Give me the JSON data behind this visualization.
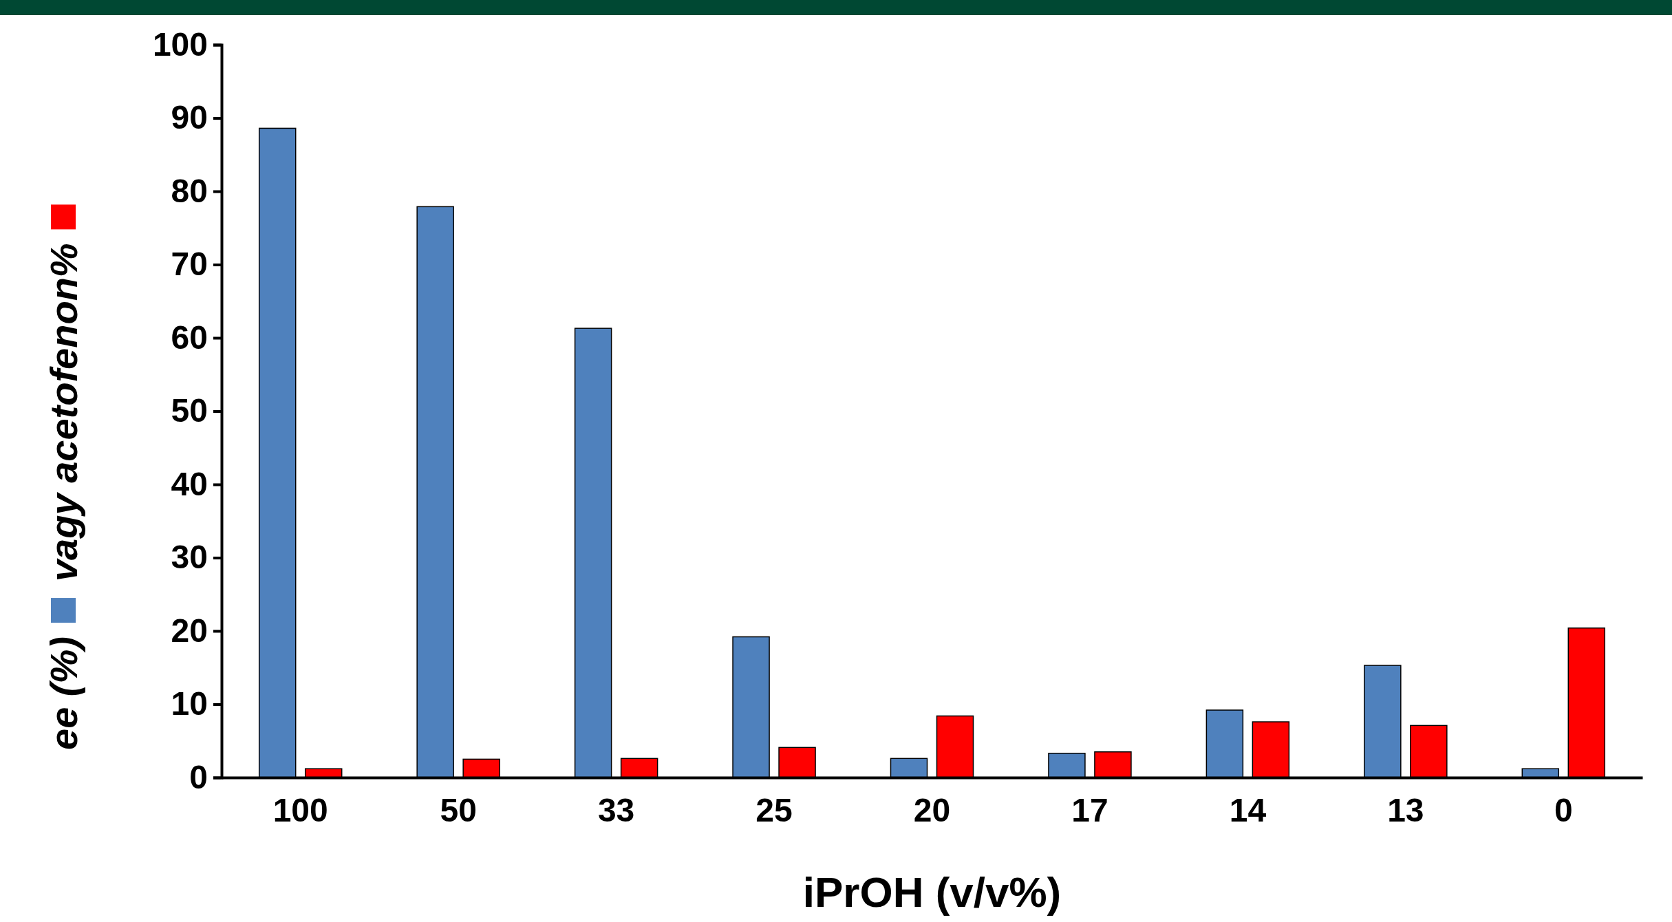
{
  "chart_data": {
    "type": "bar",
    "xlabel": "iPrOH (v/v%)",
    "categories": [
      "100",
      "50",
      "33",
      "25",
      "20",
      "17",
      "14",
      "13",
      "0"
    ],
    "series": [
      {
        "name": "ee (%)",
        "color": "#4f81bd",
        "values": [
          88.6,
          77.9,
          61.3,
          19.2,
          2.6,
          3.3,
          9.2,
          15.3,
          1.2
        ]
      },
      {
        "name": "vagy acetofenon%",
        "color": "#ff0000",
        "values": [
          1.2,
          2.5,
          2.6,
          4.1,
          8.4,
          3.5,
          7.6,
          7.1,
          20.4
        ]
      }
    ],
    "ylim": [
      0,
      100
    ],
    "yticks": [
      0,
      10,
      20,
      30,
      40,
      50,
      60,
      70,
      80,
      90,
      100
    ],
    "grid": false,
    "legend": "left"
  }
}
